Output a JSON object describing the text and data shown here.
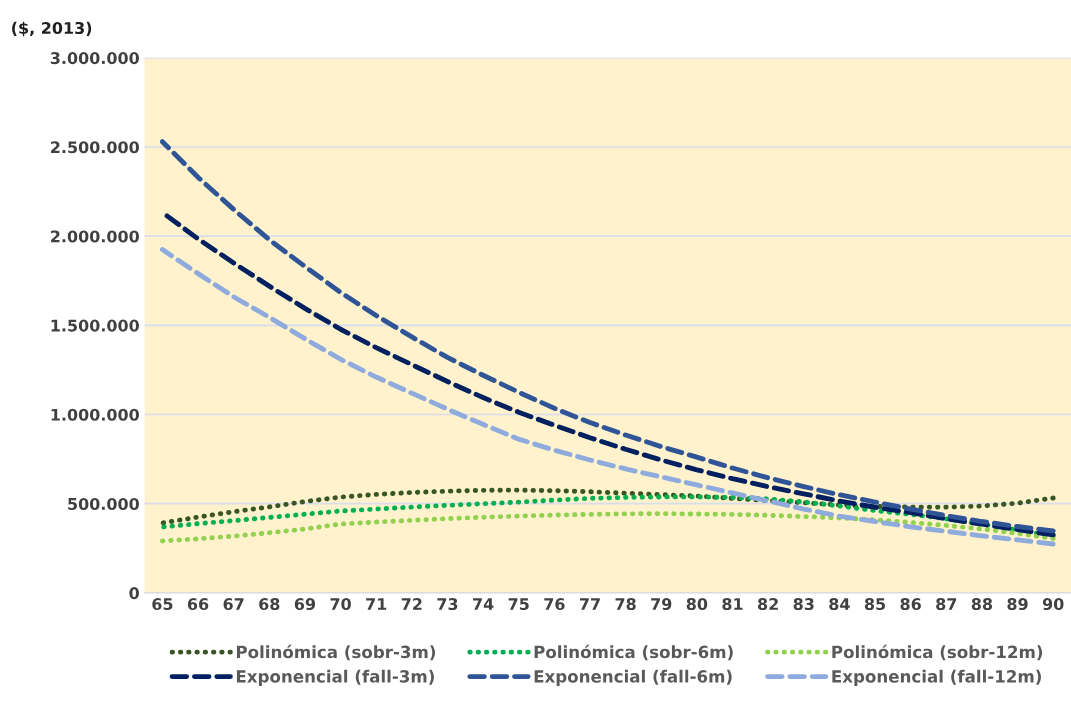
{
  "chart_data": {
    "type": "line",
    "ylabel": "($, 2013)",
    "categories": [
      "65",
      "66",
      "67",
      "68",
      "69",
      "70",
      "71",
      "72",
      "73",
      "74",
      "75",
      "76",
      "77",
      "78",
      "79",
      "80",
      "81",
      "82",
      "83",
      "84",
      "85",
      "86",
      "87",
      "88",
      "89",
      "90"
    ],
    "ylim": [
      0,
      3000000
    ],
    "yticks": [
      {
        "value": 0,
        "label": "0"
      },
      {
        "value": 500000,
        "label": "500.000"
      },
      {
        "value": 1000000,
        "label": "1.000.000"
      },
      {
        "value": 1500000,
        "label": "1.500.000"
      },
      {
        "value": 2000000,
        "label": "2.000.000"
      },
      {
        "value": 2500000,
        "label": "2.500.000"
      },
      {
        "value": 3000000,
        "label": "3.000.000"
      }
    ],
    "grid": "y",
    "legend": "bottom",
    "marker": "none",
    "series": [
      {
        "name": "Polinómica (sobr-3m)",
        "color": "#375623",
        "line_style": "dotted",
        "values": [
          392000,
          425000,
          455000,
          482000,
          512000,
          537000,
          552000,
          563000,
          570000,
          575000,
          576000,
          573000,
          567000,
          559000,
          551000,
          543000,
          530000,
          517000,
          505000,
          493000,
          485000,
          481000,
          481000,
          487000,
          503000,
          532000
        ]
      },
      {
        "name": "Polinómica (sobr-6m)",
        "color": "#00b050",
        "line_style": "dotted",
        "values": [
          369000,
          388000,
          405000,
          423000,
          441000,
          459000,
          470000,
          481000,
          491000,
          500000,
          509000,
          520000,
          530000,
          535000,
          538000,
          538000,
          535000,
          527000,
          510000,
          487000,
          461000,
          440000,
          415000,
          385000,
          352000,
          319000
        ]
      },
      {
        "name": "Polinómica (sobr-12m)",
        "color": "#92d050",
        "line_style": "dotted",
        "values": [
          291000,
          303000,
          318000,
          337000,
          358000,
          386000,
          397000,
          407000,
          416000,
          424000,
          431000,
          436000,
          440000,
          443000,
          444000,
          442000,
          440000,
          435000,
          428000,
          420000,
          410000,
          395000,
          378000,
          358000,
          333000,
          305000
        ]
      },
      {
        "name": "Exponencial (fall-3m)",
        "color": "#002060",
        "line_style": "dashed",
        "values": [
          2133000,
          1985000,
          1850000,
          1720000,
          1595000,
          1478000,
          1375000,
          1280000,
          1185000,
          1095000,
          1013000,
          940000,
          870000,
          805000,
          745000,
          690000,
          640000,
          595000,
          555000,
          515000,
          480000,
          450000,
          415000,
          385000,
          355000,
          325000
        ]
      },
      {
        "name": "Exponencial (fall-6m)",
        "color": "#2f5597",
        "line_style": "dashed",
        "values": [
          2530000,
          2330000,
          2150000,
          1980000,
          1830000,
          1685000,
          1555000,
          1435000,
          1320000,
          1220000,
          1125000,
          1035000,
          955000,
          885000,
          820000,
          761000,
          700000,
          645000,
          596000,
          550000,
          509000,
          470000,
          433000,
          400000,
          372000,
          347000
        ]
      },
      {
        "name": "Exponencial (fall-12m)",
        "color": "#8faadc",
        "line_style": "dashed",
        "values": [
          1925000,
          1790000,
          1660000,
          1545000,
          1425000,
          1310000,
          1210000,
          1120000,
          1030000,
          945000,
          862000,
          800000,
          745000,
          695000,
          650000,
          605000,
          560000,
          515000,
          470000,
          430000,
          400000,
          370000,
          345000,
          320000,
          297000,
          274000
        ]
      }
    ]
  }
}
